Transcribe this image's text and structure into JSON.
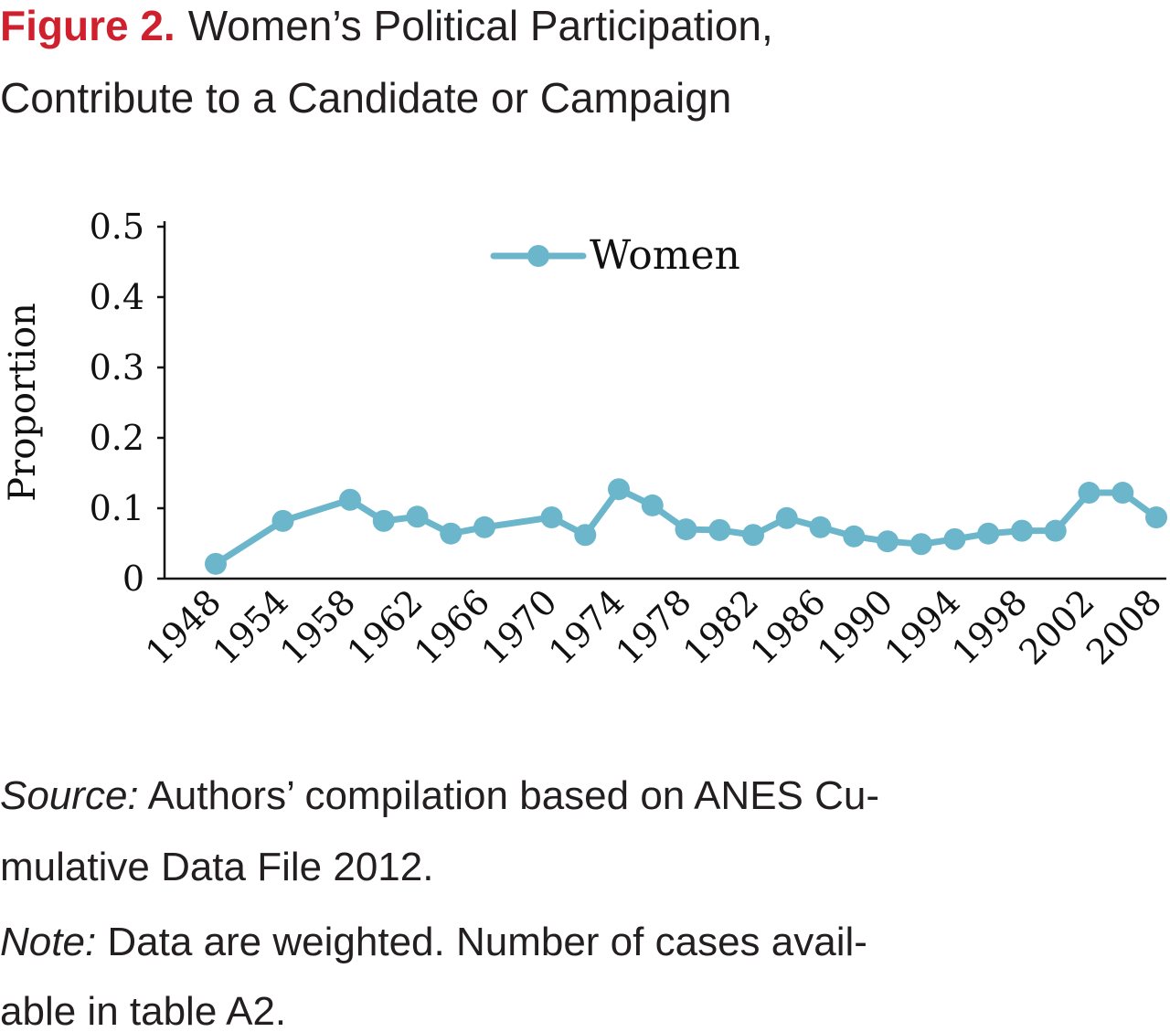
{
  "figure_label": "Figure 2.",
  "chart_data": {
    "type": "line",
    "title": [
      "Women’s Political Participation,",
      "Contribute to a Candidate or Campaign"
    ],
    "y_label": "Proportion",
    "categories": [
      "1948",
      null,
      "1954",
      null,
      "1958",
      null,
      "1962",
      null,
      "1966",
      null,
      "1970",
      null,
      "1974",
      null,
      "1978",
      null,
      "1982",
      null,
      "1986",
      null,
      "1990",
      null,
      "1994",
      null,
      "1998",
      null,
      "2002",
      null,
      "2008"
    ],
    "series": [
      {
        "name": "Women",
        "color": "#6cb6cb",
        "values": [
          0.021,
          null,
          0.082,
          null,
          0.112,
          0.082,
          0.088,
          0.064,
          0.073,
          null,
          0.087,
          0.062,
          0.127,
          0.104,
          0.07,
          0.069,
          0.062,
          0.086,
          0.073,
          0.06,
          0.053,
          0.049,
          0.056,
          0.064,
          0.068,
          0.068,
          0.122,
          0.122,
          0.087
        ]
      }
    ],
    "connect_gaps": true,
    "ylim": [
      0,
      0.5
    ],
    "yticks": [
      0,
      0.1,
      0.2,
      0.3,
      0.4,
      0.5
    ],
    "legend": "top"
  },
  "notes": {
    "source_label": "Source:",
    "source_lines": [
      " Authors’ compilation based on ANES Cu-",
      "mulative Data File 2012."
    ],
    "note_label": "Note:",
    "note_lines": [
      " Data are weighted. Number of cases avail-",
      "able in table A2."
    ]
  }
}
